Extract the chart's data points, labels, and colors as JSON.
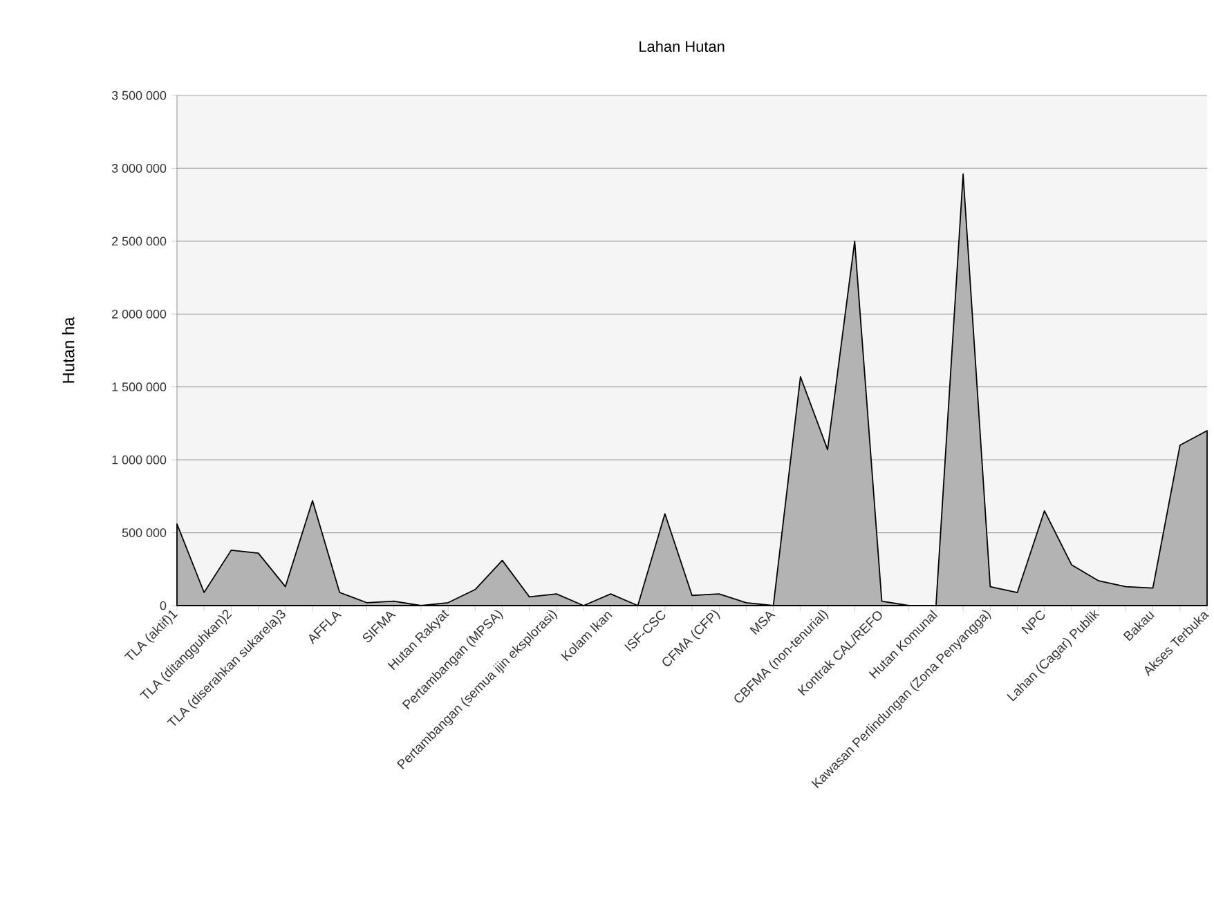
{
  "chart_data": {
    "type": "area",
    "title": "Lahan Hutan",
    "ylabel": "Hutan ha",
    "categories": [
      "TLA (aktif)1",
      null,
      "TLA (ditangguhkan)2",
      null,
      "TLA (diserahkan sukarela)3",
      null,
      "AFFLA",
      null,
      "SIFMA",
      null,
      "Hutan Rakyat",
      null,
      "Pertambangan (MPSA)",
      null,
      "Pertambangan (semua ijin eksplorasi)",
      null,
      "Kolam Ikan",
      null,
      "ISF-CSC",
      null,
      "CFMA (CFP)",
      null,
      "MSA",
      null,
      "CBFMA (non-tenurial)",
      null,
      "Kontrak CAL/REFO",
      null,
      "Hutan Komunal",
      null,
      "Kawasan Perlindungan (Zona Penyangga)",
      null,
      "NPC",
      null,
      "Lahan (Cagar) Publik",
      null,
      "Bakau",
      null,
      "Akses Terbuka"
    ],
    "series": [
      {
        "color": "#b3b3b3",
        "values": [
          560000,
          90000,
          380000,
          360000,
          130000,
          720000,
          90000,
          20000,
          30000,
          0,
          20000,
          110000,
          310000,
          60000,
          80000,
          0,
          80000,
          0,
          630000,
          70000,
          80000,
          20000,
          0,
          1570000,
          1070000,
          2500000,
          30000,
          0,
          0,
          2960000,
          130000,
          90000,
          650000,
          280000,
          170000,
          130000,
          120000,
          1100000,
          1200000
        ]
      }
    ],
    "ylim": [
      0,
      3500000
    ],
    "yticks": [
      {
        "value": 0,
        "label": "0"
      },
      {
        "value": 500000,
        "label": "500 000"
      },
      {
        "value": 1000000,
        "label": "1 000 000"
      },
      {
        "value": 1500000,
        "label": "1 500 000"
      },
      {
        "value": 2000000,
        "label": "2 000 000"
      },
      {
        "value": 2500000,
        "label": "2 500 000"
      },
      {
        "value": 3000000,
        "label": "3 000 000"
      },
      {
        "value": 3500000,
        "label": "3 500 000"
      }
    ],
    "grid": "y"
  }
}
